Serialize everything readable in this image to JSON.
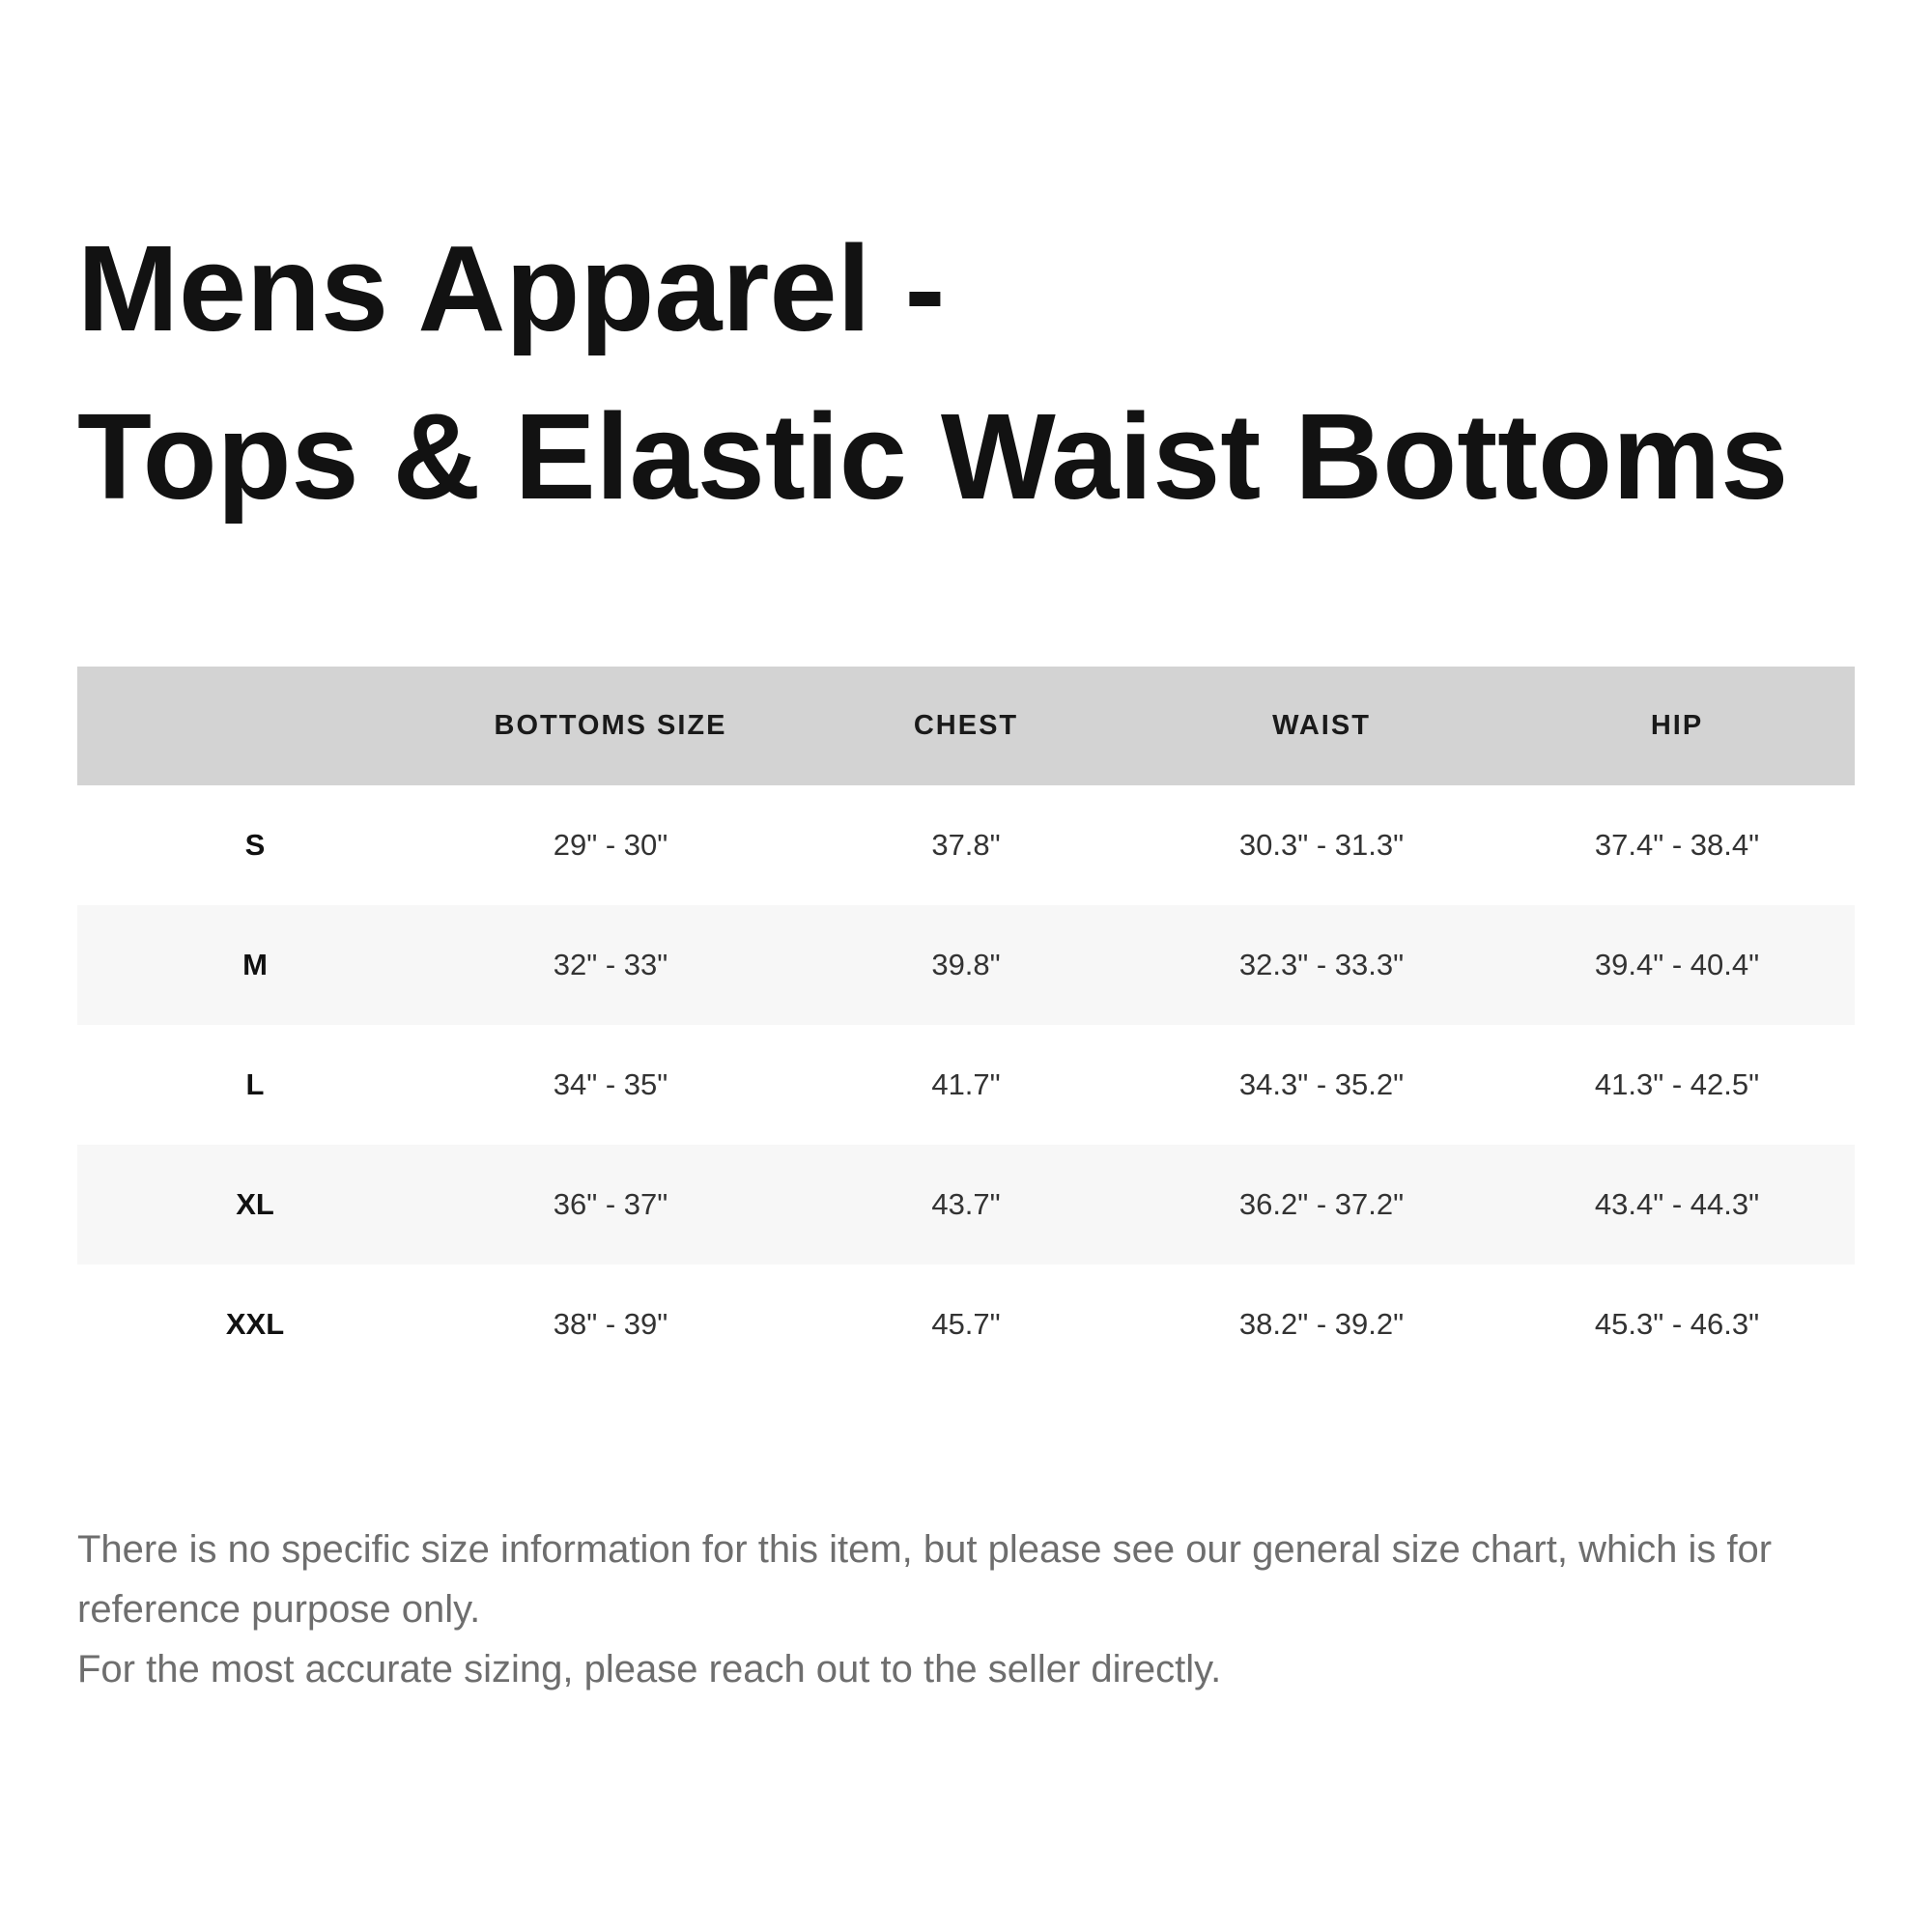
{
  "title": {
    "line1": "Mens Apparel -",
    "line2": "Tops & Elastic Waist Bottoms"
  },
  "table": {
    "headers": [
      "",
      "BOTTOMS SIZE",
      "CHEST",
      "WAIST",
      "HIP"
    ],
    "rows": [
      {
        "size": "S",
        "bottoms": "29\" - 30\"",
        "chest": "37.8\"",
        "waist": "30.3\" - 31.3\"",
        "hip": "37.4\" - 38.4\""
      },
      {
        "size": "M",
        "bottoms": "32\" - 33\"",
        "chest": "39.8\"",
        "waist": "32.3\" - 33.3\"",
        "hip": "39.4\" - 40.4\""
      },
      {
        "size": "L",
        "bottoms": "34\" - 35\"",
        "chest": "41.7\"",
        "waist": "34.3\" - 35.2\"",
        "hip": "41.3\" - 42.5\""
      },
      {
        "size": "XL",
        "bottoms": "36\" - 37\"",
        "chest": "43.7\"",
        "waist": "36.2\" - 37.2\"",
        "hip": "43.4\" - 44.3\""
      },
      {
        "size": "XXL",
        "bottoms": "38\" - 39\"",
        "chest": "45.7\"",
        "waist": "38.2\" - 39.2\"",
        "hip": "45.3\" - 46.3\""
      }
    ]
  },
  "footer": {
    "note1": "There is no specific size information for this item, but please see our general size chart, which is for reference purpose only.",
    "note2": "For the most accurate sizing, please reach out to the seller directly."
  },
  "colors": {
    "header_bg": "#d3d3d3",
    "alt_row_bg": "#f7f7f7",
    "title_text": "#121212",
    "body_text": "#333333",
    "footer_text": "#6e6e6e"
  }
}
